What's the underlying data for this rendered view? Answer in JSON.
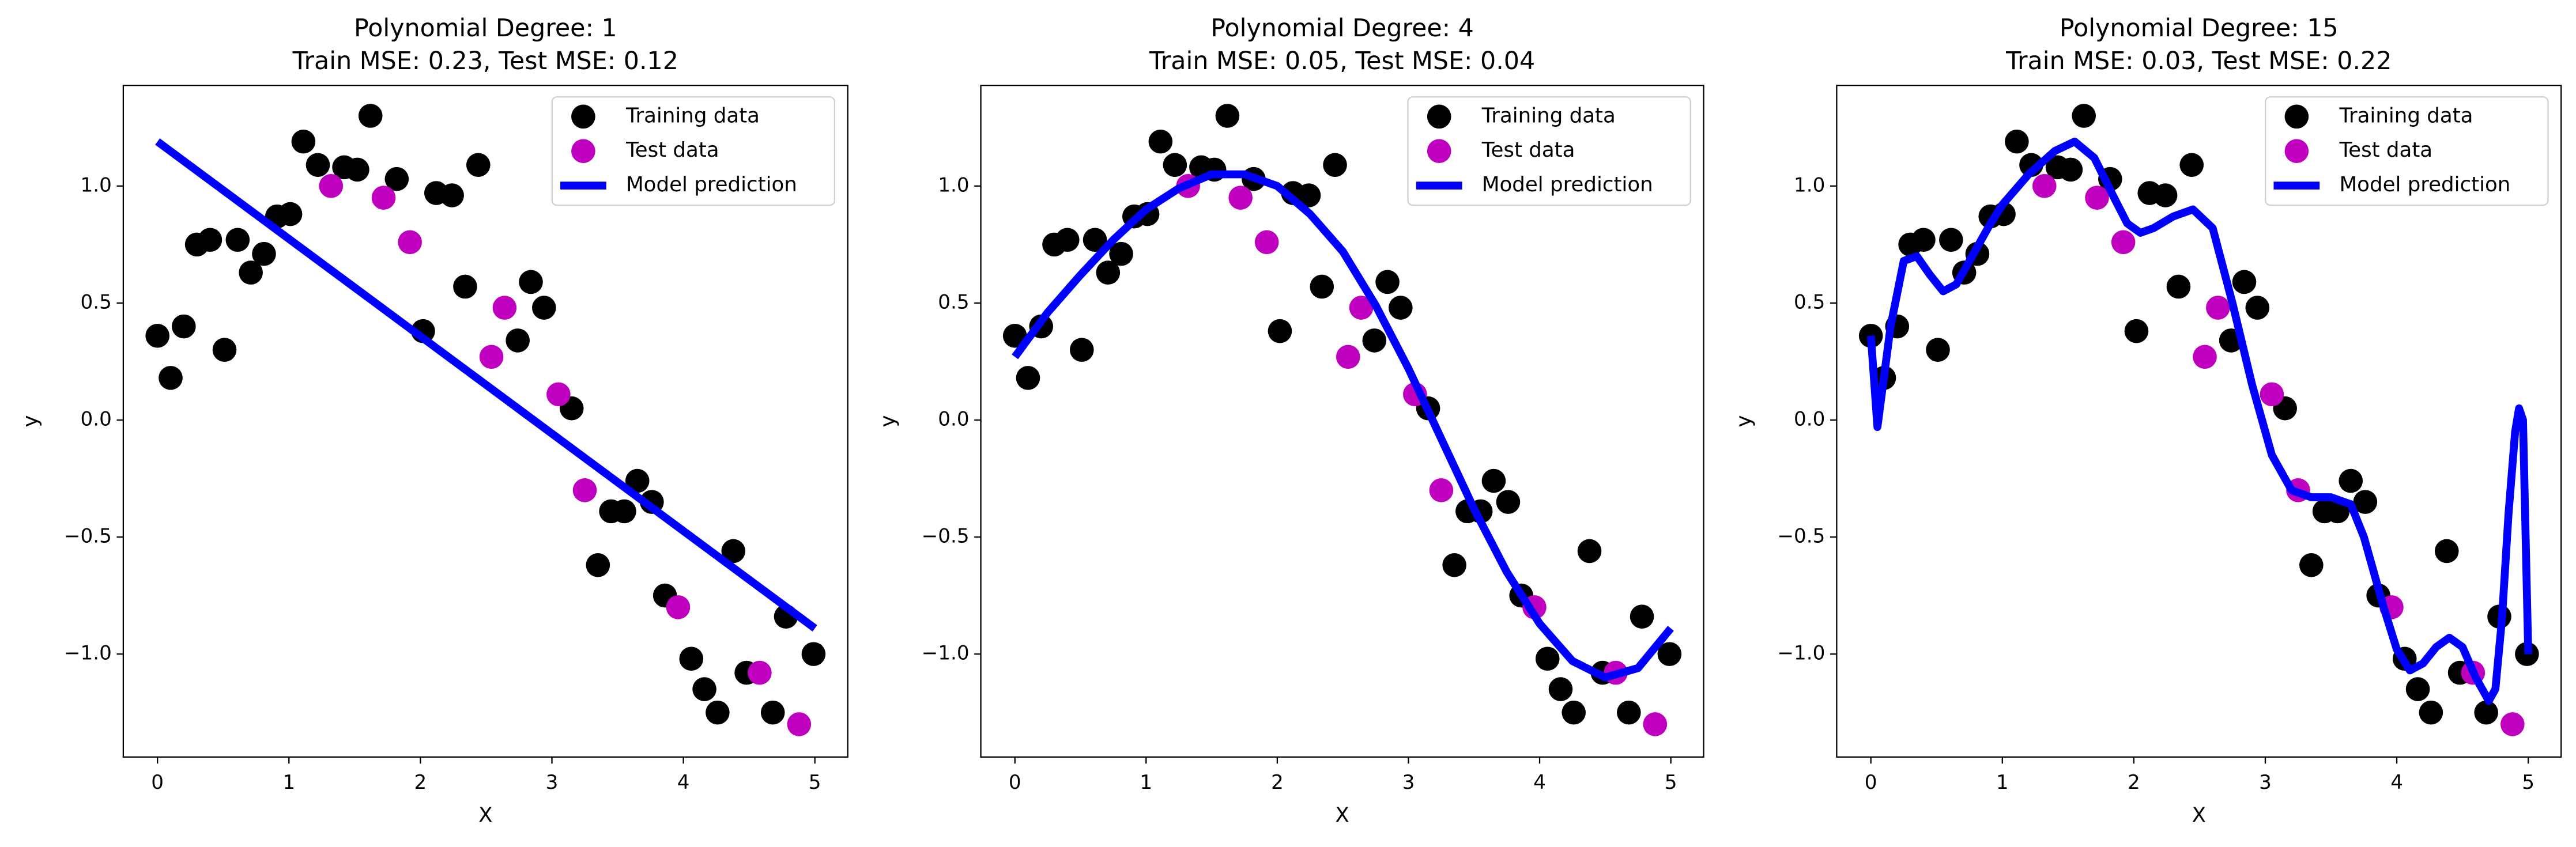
{
  "chart_data": [
    {
      "type": "scatter",
      "title": "Polynomial Degree: 1",
      "subtitle": "Train MSE: 0.23, Test MSE: 0.12",
      "xlabel": "X",
      "ylabel": "y",
      "legend": "upper right",
      "xlim": [
        -0.26,
        5.25
      ],
      "ylim": [
        -1.44,
        1.43
      ],
      "xticks": [
        0,
        1,
        2,
        3,
        4,
        5
      ],
      "yticks": [
        {
          "value": -1,
          "label": "−1.0"
        },
        {
          "value": -0.5,
          "label": "−0.5"
        },
        {
          "value": 0,
          "label": "0.0"
        },
        0.5,
        {
          "value": 1,
          "label": "1.0"
        }
      ],
      "series": [
        {
          "name": "Training data",
          "type": "scatter",
          "color": "#000000",
          "x": [
            0,
            0.1,
            0.2,
            0.3,
            0.4,
            0.51,
            0.61,
            0.71,
            0.81,
            0.91,
            1.01,
            1.11,
            1.22,
            1.42,
            1.52,
            1.62,
            1.82,
            2.02,
            2.12,
            2.24,
            2.34,
            2.44,
            2.74,
            2.84,
            2.94,
            3.15,
            3.35,
            3.45,
            3.55,
            3.65,
            3.76,
            3.86,
            4.06,
            4.16,
            4.26,
            4.38,
            4.48,
            4.68,
            4.78,
            4.99
          ],
          "values": [
            0.36,
            0.18,
            0.4,
            0.75,
            0.77,
            0.3,
            0.77,
            0.63,
            0.71,
            0.87,
            0.88,
            1.19,
            1.09,
            1.08,
            1.07,
            1.3,
            1.03,
            0.38,
            0.97,
            0.96,
            0.57,
            1.09,
            0.34,
            0.59,
            0.48,
            0.05,
            -0.62,
            -0.39,
            -0.39,
            -0.26,
            -0.35,
            -0.75,
            -1.02,
            -1.15,
            -1.25,
            -0.56,
            -1.08,
            -1.25,
            -0.84,
            -1.0
          ]
        },
        {
          "name": "Test data",
          "type": "scatter",
          "color": "#bf00bf",
          "x": [
            1.32,
            1.72,
            1.92,
            2.54,
            2.64,
            3.05,
            3.25,
            3.96,
            4.58,
            4.88
          ],
          "values": [
            1.0,
            0.95,
            0.76,
            0.27,
            0.48,
            0.11,
            -0.3,
            -0.8,
            -1.08,
            -1.3
          ]
        },
        {
          "name": "Model prediction",
          "type": "line",
          "color": "#0000ff",
          "x": [
            0,
            5
          ],
          "values": [
            1.19,
            -0.89
          ]
        }
      ]
    },
    {
      "type": "scatter",
      "title": "Polynomial Degree: 4",
      "subtitle": "Train MSE: 0.05, Test MSE: 0.04",
      "xlabel": "X",
      "ylabel": "y",
      "legend": "upper right",
      "xlim": [
        -0.26,
        5.25
      ],
      "ylim": [
        -1.44,
        1.43
      ],
      "xticks": [
        0,
        1,
        2,
        3,
        4,
        5
      ],
      "yticks": [
        {
          "value": -1,
          "label": "−1.0"
        },
        {
          "value": -0.5,
          "label": "−0.5"
        },
        {
          "value": 0,
          "label": "0.0"
        },
        0.5,
        {
          "value": 1,
          "label": "1.0"
        }
      ],
      "series": [
        {
          "name": "Training data",
          "type": "scatter",
          "color": "#000000",
          "x": [
            0,
            0.1,
            0.2,
            0.3,
            0.4,
            0.51,
            0.61,
            0.71,
            0.81,
            0.91,
            1.01,
            1.11,
            1.22,
            1.42,
            1.52,
            1.62,
            1.82,
            2.02,
            2.12,
            2.24,
            2.34,
            2.44,
            2.74,
            2.84,
            2.94,
            3.15,
            3.35,
            3.45,
            3.55,
            3.65,
            3.76,
            3.86,
            4.06,
            4.16,
            4.26,
            4.38,
            4.48,
            4.68,
            4.78,
            4.99
          ],
          "values": [
            0.36,
            0.18,
            0.4,
            0.75,
            0.77,
            0.3,
            0.77,
            0.63,
            0.71,
            0.87,
            0.88,
            1.19,
            1.09,
            1.08,
            1.07,
            1.3,
            1.03,
            0.38,
            0.97,
            0.96,
            0.57,
            1.09,
            0.34,
            0.59,
            0.48,
            0.05,
            -0.62,
            -0.39,
            -0.39,
            -0.26,
            -0.35,
            -0.75,
            -1.02,
            -1.15,
            -1.25,
            -0.56,
            -1.08,
            -1.25,
            -0.84,
            -1.0
          ]
        },
        {
          "name": "Test data",
          "type": "scatter",
          "color": "#bf00bf",
          "x": [
            1.32,
            1.72,
            1.92,
            2.54,
            2.64,
            3.05,
            3.25,
            3.96,
            4.58,
            4.88
          ],
          "values": [
            1.0,
            0.95,
            0.76,
            0.27,
            0.48,
            0.11,
            -0.3,
            -0.8,
            -1.08,
            -1.3
          ]
        },
        {
          "name": "Model prediction",
          "type": "line",
          "color": "#0000ff",
          "x": [
            0,
            0.25,
            0.5,
            0.75,
            1,
            1.25,
            1.5,
            1.75,
            2,
            2.25,
            2.5,
            2.75,
            3,
            3.25,
            3.5,
            3.75,
            4,
            4.25,
            4.5,
            4.75,
            5
          ],
          "values": [
            0.27,
            0.46,
            0.62,
            0.77,
            0.9,
            0.99,
            1.05,
            1.05,
            1.0,
            0.88,
            0.72,
            0.49,
            0.22,
            -0.08,
            -0.38,
            -0.65,
            -0.87,
            -1.03,
            -1.1,
            -1.06,
            -0.89
          ]
        }
      ]
    },
    {
      "type": "scatter",
      "title": "Polynomial Degree: 15",
      "subtitle": "Train MSE: 0.03, Test MSE: 0.22",
      "xlabel": "X",
      "ylabel": "y",
      "legend": "upper right",
      "xlim": [
        -0.26,
        5.25
      ],
      "ylim": [
        -1.44,
        1.43
      ],
      "xticks": [
        0,
        1,
        2,
        3,
        4,
        5
      ],
      "yticks": [
        {
          "value": -1,
          "label": "−1.0"
        },
        {
          "value": -0.5,
          "label": "−0.5"
        },
        {
          "value": 0,
          "label": "0.0"
        },
        0.5,
        {
          "value": 1,
          "label": "1.0"
        }
      ],
      "series": [
        {
          "name": "Training data",
          "type": "scatter",
          "color": "#000000",
          "x": [
            0,
            0.1,
            0.2,
            0.3,
            0.4,
            0.51,
            0.61,
            0.71,
            0.81,
            0.91,
            1.01,
            1.11,
            1.22,
            1.42,
            1.52,
            1.62,
            1.82,
            2.02,
            2.12,
            2.24,
            2.34,
            2.44,
            2.74,
            2.84,
            2.94,
            3.15,
            3.35,
            3.45,
            3.55,
            3.65,
            3.76,
            3.86,
            4.06,
            4.16,
            4.26,
            4.38,
            4.48,
            4.68,
            4.78,
            4.99
          ],
          "values": [
            0.36,
            0.18,
            0.4,
            0.75,
            0.77,
            0.3,
            0.77,
            0.63,
            0.71,
            0.87,
            0.88,
            1.19,
            1.09,
            1.08,
            1.07,
            1.3,
            1.03,
            0.38,
            0.97,
            0.96,
            0.57,
            1.09,
            0.34,
            0.59,
            0.48,
            0.05,
            -0.62,
            -0.39,
            -0.39,
            -0.26,
            -0.35,
            -0.75,
            -1.02,
            -1.15,
            -1.25,
            -0.56,
            -1.08,
            -1.25,
            -0.84,
            -1.0
          ]
        },
        {
          "name": "Test data",
          "type": "scatter",
          "color": "#bf00bf",
          "x": [
            1.32,
            1.72,
            1.92,
            2.54,
            2.64,
            3.05,
            3.25,
            3.96,
            4.58,
            4.88
          ],
          "values": [
            1.0,
            0.95,
            0.76,
            0.27,
            0.48,
            0.11,
            -0.3,
            -0.8,
            -1.08,
            -1.3
          ]
        },
        {
          "name": "Model prediction",
          "type": "line",
          "color": "#0000ff",
          "x": [
            0,
            0.05,
            0.15,
            0.25,
            0.35,
            0.45,
            0.55,
            0.65,
            0.75,
            0.9,
            1.0,
            1.2,
            1.4,
            1.55,
            1.7,
            1.85,
            1.95,
            2.05,
            2.15,
            2.3,
            2.45,
            2.6,
            2.75,
            2.9,
            3.05,
            3.2,
            3.35,
            3.5,
            3.65,
            3.75,
            3.9,
            4.0,
            4.1,
            4.2,
            4.3,
            4.4,
            4.5,
            4.6,
            4.7,
            4.75,
            4.8,
            4.85,
            4.9,
            4.93,
            4.96,
            4.98,
            5.0
          ],
          "values": [
            0.36,
            -0.03,
            0.4,
            0.68,
            0.7,
            0.62,
            0.55,
            0.58,
            0.68,
            0.83,
            0.92,
            1.05,
            1.15,
            1.19,
            1.12,
            0.95,
            0.84,
            0.8,
            0.82,
            0.87,
            0.9,
            0.82,
            0.5,
            0.15,
            -0.15,
            -0.3,
            -0.33,
            -0.33,
            -0.36,
            -0.5,
            -0.8,
            -0.98,
            -1.07,
            -1.04,
            -0.97,
            -0.93,
            -0.97,
            -1.1,
            -1.2,
            -1.15,
            -0.85,
            -0.4,
            -0.05,
            0.05,
            0.0,
            -0.5,
            -1.0
          ]
        }
      ]
    }
  ]
}
